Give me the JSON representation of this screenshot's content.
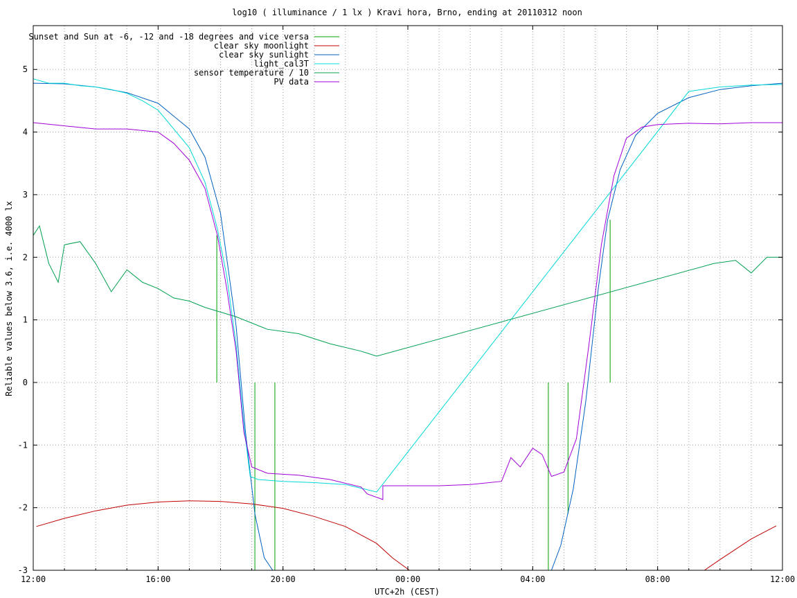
{
  "chart_data": {
    "type": "line",
    "title": "log10 ( illuminance / 1 lx ) Kravi hora, Brno, ending at 20110312 noon",
    "xlabel": "UTC+2h (CEST)",
    "ylabel": "Reliable values below 3.6, i.e. 4000 lx",
    "xlim": [
      12,
      36
    ],
    "ylim": [
      -3,
      5.7
    ],
    "grid": true,
    "legend_position": "top-left",
    "x_ticks": [
      {
        "value": 12,
        "label": "12:00"
      },
      {
        "value": 16,
        "label": "16:00"
      },
      {
        "value": 20,
        "label": "20:00"
      },
      {
        "value": 24,
        "label": "00:00"
      },
      {
        "value": 28,
        "label": "04:00"
      },
      {
        "value": 32,
        "label": "08:00"
      },
      {
        "value": 36,
        "label": "12:00"
      }
    ],
    "x_minor_step": 1,
    "y_ticks": [
      -3,
      -2,
      -1,
      0,
      1,
      2,
      3,
      4,
      5
    ],
    "series": [
      {
        "name": "Sunset and Sun at -6, -12 and -18 degrees and vice versa",
        "style": "impulses",
        "color": "#00a000",
        "points": [
          [
            17.88,
            2.35
          ],
          [
            18.5,
            0
          ],
          [
            19.1,
            -3
          ],
          [
            19.74,
            -3
          ],
          [
            28.5,
            -3
          ],
          [
            29.13,
            -2.1
          ],
          [
            29.8,
            0
          ],
          [
            30.48,
            2.6
          ]
        ]
      },
      {
        "name": "clear sky moonlight",
        "color": "#c00000",
        "points": [
          [
            12.1,
            -2.3
          ],
          [
            13,
            -2.17
          ],
          [
            14,
            -2.05
          ],
          [
            15,
            -1.96
          ],
          [
            16,
            -1.91
          ],
          [
            17,
            -1.89
          ],
          [
            18,
            -1.9
          ],
          [
            19,
            -1.94
          ],
          [
            20,
            -2.01
          ],
          [
            21,
            -2.14
          ],
          [
            22,
            -2.3
          ],
          [
            23,
            -2.57
          ],
          [
            23.5,
            -2.8
          ],
          [
            24.05,
            -3.0
          ],
          [
            33.5,
            -3.0
          ],
          [
            34,
            -2.83
          ],
          [
            35,
            -2.5
          ],
          [
            35.8,
            -2.29
          ]
        ]
      },
      {
        "name": "clear sky sunlight",
        "color": "#0060c0",
        "points": [
          [
            12,
            4.78
          ],
          [
            13,
            4.77
          ],
          [
            14,
            4.72
          ],
          [
            15,
            4.63
          ],
          [
            16,
            4.46
          ],
          [
            17,
            4.05
          ],
          [
            17.5,
            3.6
          ],
          [
            18,
            2.7
          ],
          [
            18.5,
            0.9
          ],
          [
            18.8,
            -0.8
          ],
          [
            19.1,
            -2.1
          ],
          [
            19.4,
            -2.8
          ],
          [
            19.67,
            -3.0
          ],
          [
            28.6,
            -3.0
          ],
          [
            28.9,
            -2.6
          ],
          [
            29.3,
            -1.7
          ],
          [
            29.7,
            -0.3
          ],
          [
            30.1,
            1.5
          ],
          [
            30.4,
            2.6
          ],
          [
            30.8,
            3.4
          ],
          [
            31.3,
            3.95
          ],
          [
            32,
            4.3
          ],
          [
            33,
            4.55
          ],
          [
            34,
            4.68
          ],
          [
            35,
            4.74
          ],
          [
            36,
            4.78
          ]
        ]
      },
      {
        "name": "light_cal3T",
        "color": "#00d8d8",
        "points": [
          [
            12,
            4.85
          ],
          [
            12.5,
            4.78
          ],
          [
            13,
            4.78
          ],
          [
            13.5,
            4.74
          ],
          [
            14,
            4.72
          ],
          [
            14.5,
            4.68
          ],
          [
            15,
            4.62
          ],
          [
            15.5,
            4.5
          ],
          [
            16,
            4.35
          ],
          [
            16.5,
            4.05
          ],
          [
            17,
            3.75
          ],
          [
            17.5,
            3.2
          ],
          [
            17.9,
            2.45
          ],
          [
            18.2,
            1.7
          ],
          [
            18.5,
            0.6
          ],
          [
            18.75,
            -0.7
          ],
          [
            18.95,
            -1.5
          ],
          [
            19.2,
            -1.55
          ],
          [
            20,
            -1.58
          ],
          [
            21,
            -1.6
          ],
          [
            22,
            -1.63
          ],
          [
            22.6,
            -1.7
          ],
          [
            23,
            -1.75
          ],
          [
            33,
            4.65
          ],
          [
            34,
            4.72
          ],
          [
            35,
            4.75
          ],
          [
            36,
            4.76
          ]
        ]
      },
      {
        "name": "sensor temperature / 10",
        "color": "#00a050",
        "points": [
          [
            12,
            2.35
          ],
          [
            12.2,
            2.5
          ],
          [
            12.5,
            1.9
          ],
          [
            12.8,
            1.6
          ],
          [
            13,
            2.2
          ],
          [
            13.5,
            2.25
          ],
          [
            14,
            1.9
          ],
          [
            14.5,
            1.45
          ],
          [
            15,
            1.8
          ],
          [
            15.5,
            1.6
          ],
          [
            16,
            1.5
          ],
          [
            16.5,
            1.35
          ],
          [
            17,
            1.3
          ],
          [
            17.5,
            1.2
          ],
          [
            18.5,
            1.05
          ],
          [
            19.5,
            0.85
          ],
          [
            20.5,
            0.78
          ],
          [
            21.5,
            0.62
          ],
          [
            22.5,
            0.5
          ],
          [
            23,
            0.42
          ],
          [
            33.8,
            1.9
          ],
          [
            34.5,
            1.95
          ],
          [
            35,
            1.75
          ],
          [
            35.5,
            2.0
          ],
          [
            36,
            2.0
          ]
        ]
      },
      {
        "name": "PV data",
        "color": "#a000d8",
        "points": [
          [
            12,
            4.15
          ],
          [
            13,
            4.1
          ],
          [
            14,
            4.05
          ],
          [
            15,
            4.05
          ],
          [
            16,
            4.0
          ],
          [
            16.5,
            3.82
          ],
          [
            17,
            3.55
          ],
          [
            17.5,
            3.1
          ],
          [
            17.9,
            2.35
          ],
          [
            18.2,
            1.5
          ],
          [
            18.5,
            0.5
          ],
          [
            18.75,
            -0.8
          ],
          [
            19,
            -1.35
          ],
          [
            19.5,
            -1.45
          ],
          [
            20.5,
            -1.48
          ],
          [
            21.5,
            -1.55
          ],
          [
            22.5,
            -1.67
          ],
          [
            22.7,
            -1.78
          ],
          [
            23.2,
            -1.87
          ],
          [
            23.2,
            -1.65
          ],
          [
            24,
            -1.65
          ],
          [
            25,
            -1.65
          ],
          [
            26,
            -1.63
          ],
          [
            27,
            -1.58
          ],
          [
            27.3,
            -1.2
          ],
          [
            27.6,
            -1.35
          ],
          [
            28,
            -1.05
          ],
          [
            28.3,
            -1.15
          ],
          [
            28.6,
            -1.5
          ],
          [
            29,
            -1.43
          ],
          [
            29.4,
            -0.9
          ],
          [
            29.8,
            0.6
          ],
          [
            30.2,
            2.2
          ],
          [
            30.6,
            3.3
          ],
          [
            31,
            3.9
          ],
          [
            31.5,
            4.08
          ],
          [
            32,
            4.12
          ],
          [
            33,
            4.14
          ],
          [
            34,
            4.13
          ],
          [
            35,
            4.15
          ],
          [
            36,
            4.15
          ]
        ]
      }
    ]
  }
}
